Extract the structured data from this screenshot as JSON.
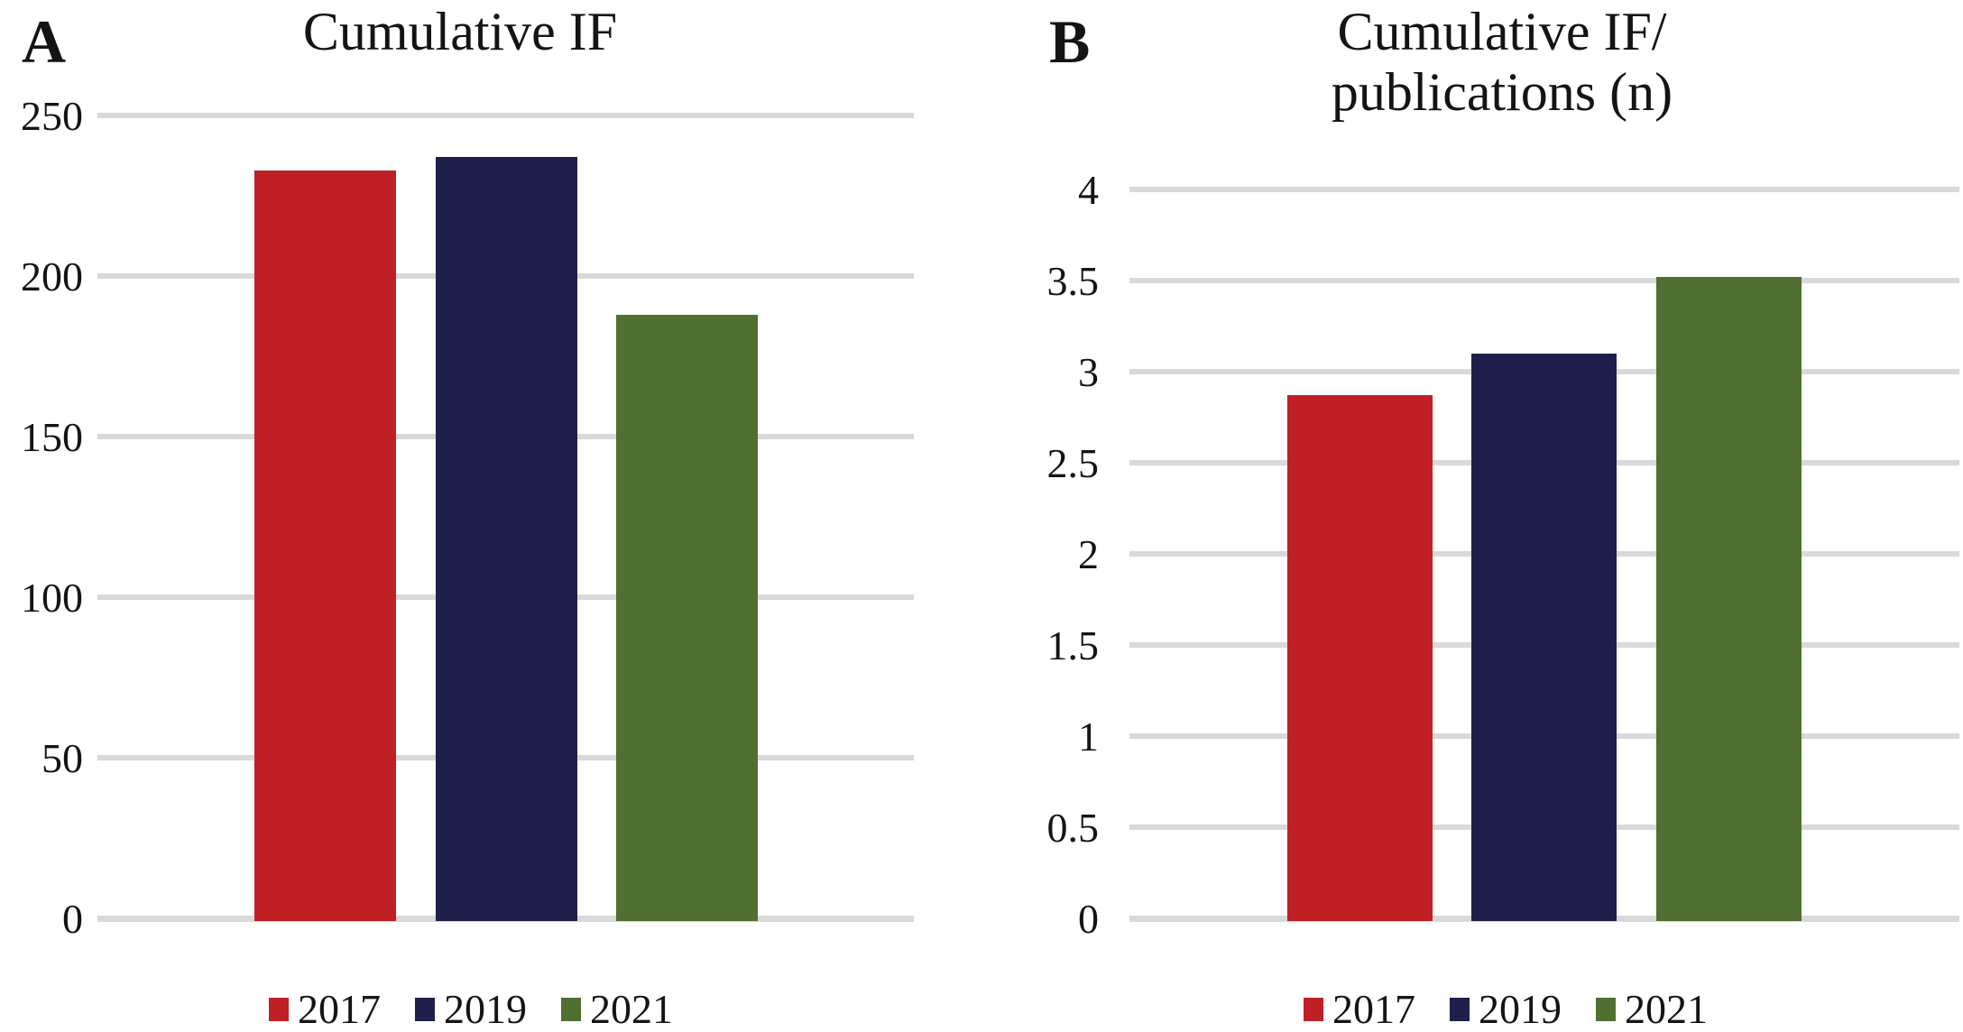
{
  "figure": {
    "text_color": "#141414",
    "background_color": "#ffffff",
    "grid_color": "#d9d9d9"
  },
  "chart_data": [
    {
      "type": "bar",
      "panel_label": "A",
      "title": "Cumulative IF",
      "categories": [
        "2017",
        "2019",
        "2021"
      ],
      "values": [
        233,
        237,
        188
      ],
      "series_colors": [
        "#be2026",
        "#1e1f4b",
        "#4f7030"
      ],
      "xlabel": "",
      "ylabel": "",
      "ylim": [
        0,
        250
      ],
      "ytick_step": 50,
      "yticks": [
        "0",
        "50",
        "100",
        "150",
        "200",
        "250"
      ],
      "grid": true,
      "legend": [
        "2017",
        "2019",
        "2021"
      ],
      "legend_position": "bottom"
    },
    {
      "type": "bar",
      "panel_label": "B",
      "title": "Cumulative IF/\npublications (n)",
      "categories": [
        "2017",
        "2019",
        "2021"
      ],
      "values": [
        2.87,
        3.1,
        3.52
      ],
      "series_colors": [
        "#be2026",
        "#1e1f4b",
        "#4f7030"
      ],
      "xlabel": "",
      "ylabel": "",
      "ylim": [
        0,
        4
      ],
      "ytick_step": 0.5,
      "yticks": [
        "0",
        "0.5",
        "1",
        "1.5",
        "2",
        "2.5",
        "3",
        "3.5",
        "4"
      ],
      "grid": true,
      "legend": [
        "2017",
        "2019",
        "2021"
      ],
      "legend_position": "bottom"
    }
  ]
}
